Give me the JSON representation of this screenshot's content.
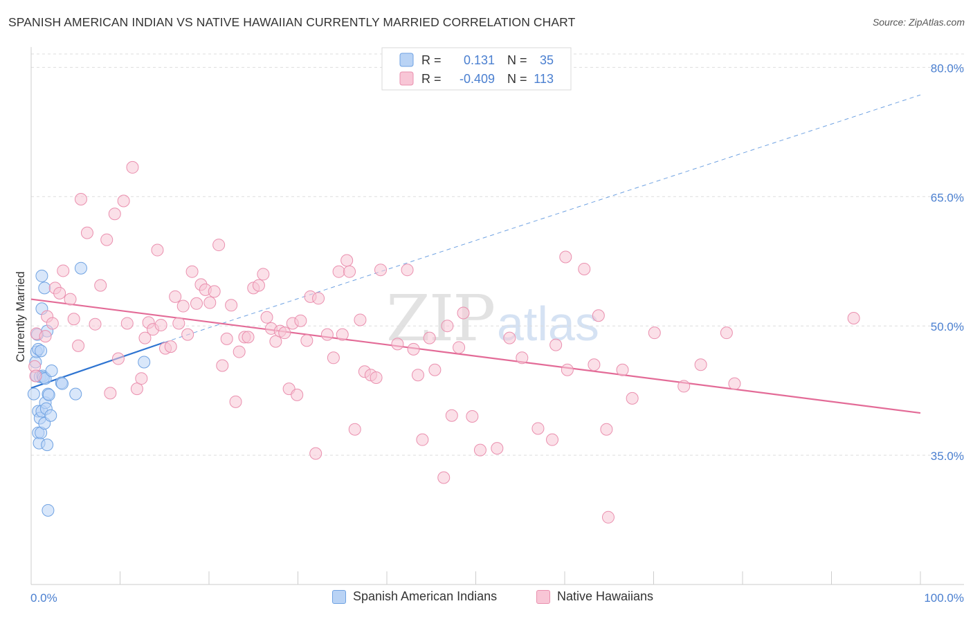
{
  "title": "SPANISH AMERICAN INDIAN VS NATIVE HAWAIIAN CURRENTLY MARRIED CORRELATION CHART",
  "source": "Source: ZipAtlas.com",
  "watermark": {
    "zip": "ZIP",
    "atlas": "atlas"
  },
  "colors": {
    "blue_fill": "#b9d3f5",
    "blue_stroke": "#6fa2e2",
    "blue_line": "#2e74d1",
    "pink_fill": "#f8c6d6",
    "pink_stroke": "#ea8fae",
    "pink_line": "#e36b97",
    "axis_label": "#4a7fd0",
    "grid": "#dddddd"
  },
  "chart_data": {
    "type": "scatter",
    "xlabel": "",
    "ylabel": "Currently Married",
    "xlim": [
      0,
      100
    ],
    "ylim": [
      20,
      83
    ],
    "x_tick_labels": [
      "0.0%",
      "100.0%"
    ],
    "y_ticks": [
      35,
      50,
      65,
      80
    ],
    "y_tick_labels": [
      "35.0%",
      "50.0%",
      "65.0%",
      "80.0%"
    ],
    "legend_box": [
      {
        "series": "Spanish American Indians",
        "r_label": "R =",
        "r_value": " 0.131",
        "n_label": "N =",
        "n_value": "35"
      },
      {
        "series": "Native Hawaiians",
        "r_label": "R =",
        "r_value": "-0.409",
        "n_label": "N =",
        "n_value": "113"
      }
    ],
    "series": [
      {
        "name": "Spanish American Indians",
        "color": "blue",
        "trend": {
          "x0": 0,
          "y0": 42.8,
          "x1": 15,
          "y1": 48.1,
          "dashed_to_x": 100,
          "dashed_to_y": 76.8
        },
        "points": [
          [
            0.3,
            42.1
          ],
          [
            0.5,
            45.8
          ],
          [
            0.6,
            47.0
          ],
          [
            0.6,
            44.2
          ],
          [
            0.7,
            49.0
          ],
          [
            0.8,
            47.3
          ],
          [
            0.8,
            40.1
          ],
          [
            0.8,
            37.6
          ],
          [
            0.9,
            36.4
          ],
          [
            1.0,
            39.3
          ],
          [
            1.0,
            44.1
          ],
          [
            1.1,
            37.6
          ],
          [
            1.1,
            47.1
          ],
          [
            1.2,
            40.1
          ],
          [
            1.2,
            55.8
          ],
          [
            1.2,
            52.0
          ],
          [
            1.3,
            44.2
          ],
          [
            1.4,
            44.0
          ],
          [
            1.5,
            38.7
          ],
          [
            1.5,
            54.4
          ],
          [
            1.6,
            43.9
          ],
          [
            1.6,
            41.1
          ],
          [
            1.7,
            40.4
          ],
          [
            1.8,
            49.4
          ],
          [
            1.8,
            36.2
          ],
          [
            1.9,
            42.1
          ],
          [
            1.9,
            28.6
          ],
          [
            2.0,
            42.0
          ],
          [
            2.2,
            39.6
          ],
          [
            2.3,
            44.8
          ],
          [
            3.4,
            43.4
          ],
          [
            3.5,
            43.3
          ],
          [
            5.0,
            42.1
          ],
          [
            5.6,
            56.7
          ],
          [
            12.7,
            45.8
          ]
        ]
      },
      {
        "name": "Native Hawaiians",
        "color": "pink",
        "trend": {
          "x0": 0,
          "y0": 53.1,
          "x1": 100,
          "y1": 39.9
        },
        "points": [
          [
            0.4,
            45.3
          ],
          [
            0.5,
            44.2
          ],
          [
            0.6,
            49.1
          ],
          [
            1.6,
            48.8
          ],
          [
            1.8,
            51.1
          ],
          [
            2.4,
            50.3
          ],
          [
            2.7,
            54.4
          ],
          [
            3.2,
            53.8
          ],
          [
            3.6,
            56.4
          ],
          [
            4.4,
            53.1
          ],
          [
            4.8,
            50.8
          ],
          [
            5.3,
            47.7
          ],
          [
            5.6,
            64.7
          ],
          [
            6.3,
            60.8
          ],
          [
            7.2,
            50.2
          ],
          [
            7.8,
            54.7
          ],
          [
            8.5,
            60.0
          ],
          [
            8.9,
            42.2
          ],
          [
            9.4,
            63.0
          ],
          [
            9.8,
            46.2
          ],
          [
            10.4,
            64.5
          ],
          [
            10.8,
            50.3
          ],
          [
            11.4,
            68.4
          ],
          [
            11.9,
            42.7
          ],
          [
            12.4,
            43.9
          ],
          [
            12.8,
            48.6
          ],
          [
            13.2,
            50.4
          ],
          [
            13.7,
            49.6
          ],
          [
            14.2,
            58.8
          ],
          [
            14.6,
            50.1
          ],
          [
            15.1,
            47.4
          ],
          [
            15.7,
            47.6
          ],
          [
            16.2,
            53.4
          ],
          [
            16.6,
            50.3
          ],
          [
            17.1,
            52.3
          ],
          [
            17.6,
            49.0
          ],
          [
            18.1,
            56.3
          ],
          [
            18.6,
            52.6
          ],
          [
            19.1,
            54.8
          ],
          [
            19.6,
            54.2
          ],
          [
            20.1,
            52.7
          ],
          [
            20.6,
            54.0
          ],
          [
            21.1,
            59.4
          ],
          [
            21.5,
            45.4
          ],
          [
            22.0,
            48.5
          ],
          [
            22.5,
            52.4
          ],
          [
            23.0,
            41.2
          ],
          [
            23.4,
            47.0
          ],
          [
            24.0,
            48.7
          ],
          [
            24.4,
            48.7
          ],
          [
            25.0,
            54.4
          ],
          [
            25.6,
            54.7
          ],
          [
            26.1,
            56.0
          ],
          [
            26.5,
            51.0
          ],
          [
            27.0,
            49.7
          ],
          [
            27.5,
            48.2
          ],
          [
            28.0,
            49.4
          ],
          [
            28.5,
            49.2
          ],
          [
            29.0,
            42.7
          ],
          [
            29.4,
            50.3
          ],
          [
            29.9,
            42.0
          ],
          [
            30.3,
            50.6
          ],
          [
            31.0,
            48.3
          ],
          [
            31.4,
            53.4
          ],
          [
            32.0,
            35.2
          ],
          [
            32.3,
            53.2
          ],
          [
            33.3,
            49.0
          ],
          [
            34.0,
            46.3
          ],
          [
            34.6,
            56.3
          ],
          [
            35.0,
            49.0
          ],
          [
            35.5,
            57.6
          ],
          [
            35.8,
            56.3
          ],
          [
            36.4,
            38.0
          ],
          [
            37.0,
            50.7
          ],
          [
            37.5,
            44.7
          ],
          [
            38.2,
            44.3
          ],
          [
            38.8,
            44.0
          ],
          [
            39.3,
            56.5
          ],
          [
            41.2,
            47.9
          ],
          [
            42.3,
            56.5
          ],
          [
            43.0,
            47.3
          ],
          [
            43.5,
            44.3
          ],
          [
            44.0,
            36.8
          ],
          [
            44.8,
            48.6
          ],
          [
            45.4,
            44.9
          ],
          [
            46.4,
            32.4
          ],
          [
            46.8,
            50.0
          ],
          [
            47.3,
            39.6
          ],
          [
            48.1,
            47.5
          ],
          [
            48.6,
            51.5
          ],
          [
            49.6,
            39.5
          ],
          [
            50.5,
            35.6
          ],
          [
            52.4,
            35.8
          ],
          [
            53.8,
            48.6
          ],
          [
            55.2,
            46.3
          ],
          [
            57.0,
            38.1
          ],
          [
            58.6,
            36.8
          ],
          [
            59.0,
            47.8
          ],
          [
            60.1,
            58.0
          ],
          [
            60.3,
            44.9
          ],
          [
            62.2,
            56.6
          ],
          [
            63.3,
            45.5
          ],
          [
            63.8,
            51.2
          ],
          [
            64.7,
            38.0
          ],
          [
            64.9,
            27.8
          ],
          [
            66.5,
            44.9
          ],
          [
            67.6,
            41.6
          ],
          [
            70.1,
            49.2
          ],
          [
            73.4,
            43.0
          ],
          [
            75.3,
            45.5
          ],
          [
            78.2,
            49.2
          ],
          [
            79.1,
            43.3
          ],
          [
            92.5,
            50.9
          ]
        ]
      }
    ]
  },
  "bottom_legend": [
    "Spanish American Indians",
    "Native Hawaiians"
  ]
}
